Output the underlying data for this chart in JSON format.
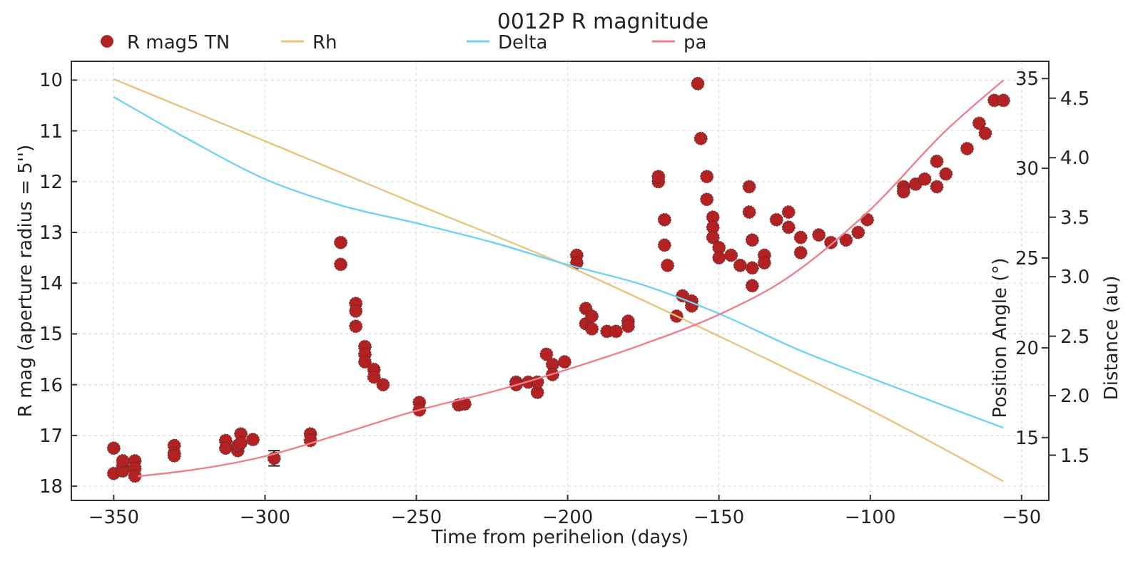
{
  "chart_data": {
    "type": "scatter",
    "title": "0012P R magnitude",
    "xlabel": "Time from perihelion (days)",
    "ylabel": "R mag (aperture radius = 5'')",
    "y2label": "Position Angle (°)",
    "y3label": "Distance (au)",
    "xlim": [
      -364,
      -41
    ],
    "xticks": [
      -350,
      -300,
      -250,
      -200,
      -150,
      -100,
      -50
    ],
    "ylim": [
      18.28,
      9.63
    ],
    "yticks": [
      10,
      11,
      12,
      13,
      14,
      15,
      16,
      17,
      18
    ],
    "y2lim": [
      11.5,
      35.96
    ],
    "y2ticks": [
      15,
      20,
      25,
      30,
      35
    ],
    "y3lim": [
      1.12,
      4.81
    ],
    "y3ticks": [
      {
        "value": 1.5,
        "label": "1.5"
      },
      {
        "value": 2,
        "label": "2.0"
      },
      {
        "value": 2.5,
        "label": "2.5"
      },
      {
        "value": 3,
        "label": "3.0"
      },
      {
        "value": 3.5,
        "label": "3.5"
      },
      {
        "value": 4,
        "label": "4.0"
      },
      {
        "value": 4.5,
        "label": "4.5"
      }
    ],
    "grid": true,
    "legend": "top",
    "series": [
      {
        "name": "R mag5 TN",
        "marker": "circle",
        "color": "#b22222",
        "x": [
          -350,
          -350,
          -347,
          -347,
          -347,
          -343,
          -343,
          -343,
          -330,
          -330,
          -330,
          -313,
          -313,
          -309,
          -309,
          -308,
          -308,
          -304,
          -297,
          -285,
          -285,
          -275,
          -275,
          -270,
          -270,
          -270,
          -267,
          -267,
          -267,
          -264,
          -264,
          -261,
          -249,
          -249,
          -236,
          -234,
          -217,
          -217,
          -213,
          -210,
          -210,
          -207,
          -205,
          -205,
          -201,
          -197,
          -197,
          -194,
          -194,
          -192,
          -192,
          -187,
          -184,
          -180,
          -180,
          -170,
          -170,
          -168,
          -168,
          -167,
          -164,
          -162,
          -159,
          -159,
          -157,
          -156,
          -154,
          -154,
          -152,
          -152,
          -152,
          -150,
          -150,
          -146,
          -143,
          -140,
          -140,
          -139,
          -139,
          -139,
          -135,
          -135,
          -131,
          -127,
          -127,
          -123,
          -123,
          -117,
          -113,
          -108,
          -104,
          -101,
          -89,
          -89,
          -85,
          -82,
          -78,
          -78,
          -75,
          -68,
          -64,
          -62,
          -59,
          -56
        ],
        "values": [
          17.25,
          17.75,
          17.6,
          17.7,
          17.5,
          17.5,
          17.65,
          17.8,
          17.2,
          17.35,
          17.4,
          17.1,
          17.25,
          17.3,
          17.2,
          16.97,
          17.15,
          17.08,
          17.45,
          16.97,
          17.1,
          13.2,
          13.63,
          14.4,
          14.55,
          14.85,
          15.25,
          15.4,
          15.55,
          15.7,
          15.85,
          16.0,
          16.35,
          16.5,
          16.4,
          16.38,
          15.95,
          16.0,
          15.95,
          16.15,
          15.95,
          15.4,
          15.6,
          15.8,
          15.55,
          13.45,
          13.6,
          14.5,
          14.8,
          14.65,
          14.9,
          14.95,
          14.95,
          14.75,
          14.85,
          12.0,
          11.9,
          12.75,
          13.25,
          13.65,
          14.65,
          14.25,
          14.35,
          14.45,
          10.07,
          11.15,
          11.9,
          12.35,
          12.7,
          12.9,
          13.1,
          13.3,
          13.5,
          13.45,
          13.65,
          12.1,
          12.6,
          13.15,
          13.7,
          14.05,
          13.45,
          13.6,
          12.75,
          12.6,
          12.9,
          13.1,
          13.4,
          13.05,
          13.2,
          13.15,
          13.0,
          12.75,
          12.1,
          12.2,
          12.05,
          11.95,
          11.6,
          12.1,
          11.85,
          11.35,
          10.85,
          11.05,
          10.4,
          10.4
        ],
        "errors": [
          null,
          null,
          null,
          null,
          null,
          null,
          null,
          null,
          null,
          null,
          null,
          null,
          null,
          null,
          null,
          null,
          null,
          null,
          0.15,
          null,
          null,
          null,
          null,
          null,
          null,
          null,
          null,
          null,
          null,
          null,
          null,
          null,
          null,
          null,
          null,
          null,
          null,
          null,
          null,
          null,
          null,
          null,
          null,
          null,
          null,
          null,
          null,
          null,
          null,
          null,
          null,
          null,
          null,
          null,
          null,
          null,
          null,
          null,
          null,
          null,
          null,
          null,
          null,
          null,
          null,
          null,
          null,
          null,
          null,
          null,
          null,
          null,
          null,
          null,
          null,
          null,
          null,
          null,
          null,
          null,
          null,
          null,
          null,
          null,
          null,
          null,
          null,
          null,
          null,
          null,
          null,
          null,
          null,
          null,
          null,
          null,
          null,
          null,
          null,
          null,
          null,
          null,
          null,
          null
        ]
      },
      {
        "name": "Rh",
        "type": "line",
        "axis": "y3",
        "color": "#e8c47e",
        "x": [
          -350,
          -300,
          -250,
          -200,
          -150,
          -100,
          -56
        ],
        "values": [
          4.66,
          4.14,
          3.61,
          3.09,
          2.5,
          1.88,
          1.28
        ]
      },
      {
        "name": "Delta",
        "type": "line",
        "axis": "y3",
        "color": "#6fd3f5",
        "x": [
          -350,
          -325,
          -300,
          -275,
          -250,
          -225,
          -200,
          -175,
          -150,
          -125,
          -100,
          -75,
          -56
        ],
        "values": [
          4.51,
          4.15,
          3.82,
          3.6,
          3.45,
          3.29,
          3.1,
          2.93,
          2.69,
          2.4,
          2.15,
          1.91,
          1.73
        ]
      },
      {
        "name": "pa",
        "type": "line",
        "axis": "y2",
        "color": "#ef7f8f",
        "x": [
          -342,
          -320,
          -300,
          -275,
          -250,
          -225,
          -200,
          -175,
          -150,
          -131,
          -100,
          -75,
          -56
        ],
        "values": [
          12.85,
          13.3,
          13.96,
          15.2,
          16.5,
          17.55,
          18.8,
          20.2,
          21.85,
          23.5,
          27.7,
          32.1,
          34.9
        ]
      }
    ]
  }
}
